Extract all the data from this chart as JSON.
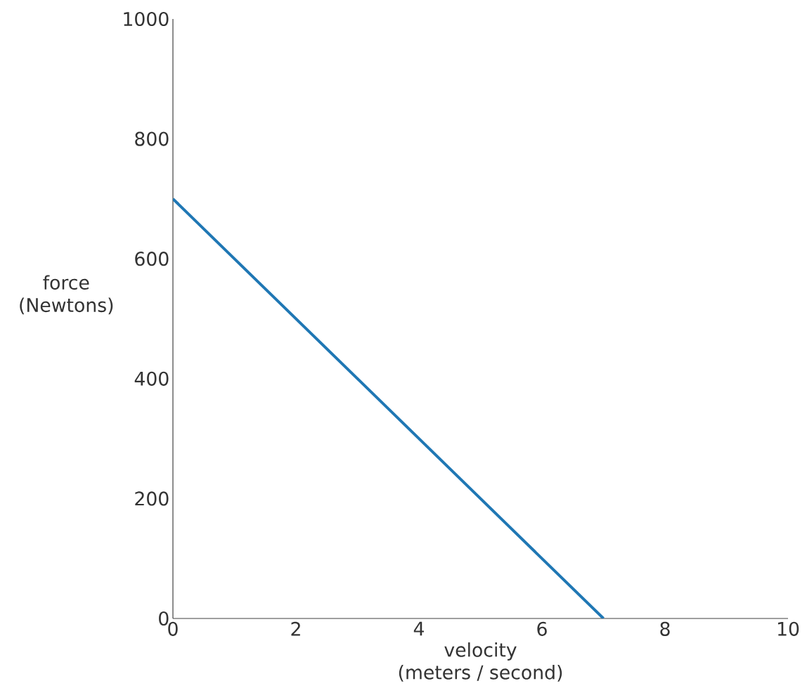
{
  "chart_data": {
    "type": "line",
    "xlabel": "velocity\n(meters / second)",
    "ylabel": "force\n(Newtons)",
    "x": [
      0,
      7
    ],
    "series": [
      {
        "color": "#1f77b4",
        "values": [
          700,
          0
        ]
      }
    ],
    "xlim": [
      0,
      10
    ],
    "ylim": [
      0,
      1000
    ],
    "xticks": [
      0,
      2,
      4,
      6,
      8,
      10
    ],
    "yticks": [
      0,
      200,
      400,
      600,
      800,
      1000
    ],
    "grid": false,
    "marker": "none",
    "line_style": "solid"
  }
}
